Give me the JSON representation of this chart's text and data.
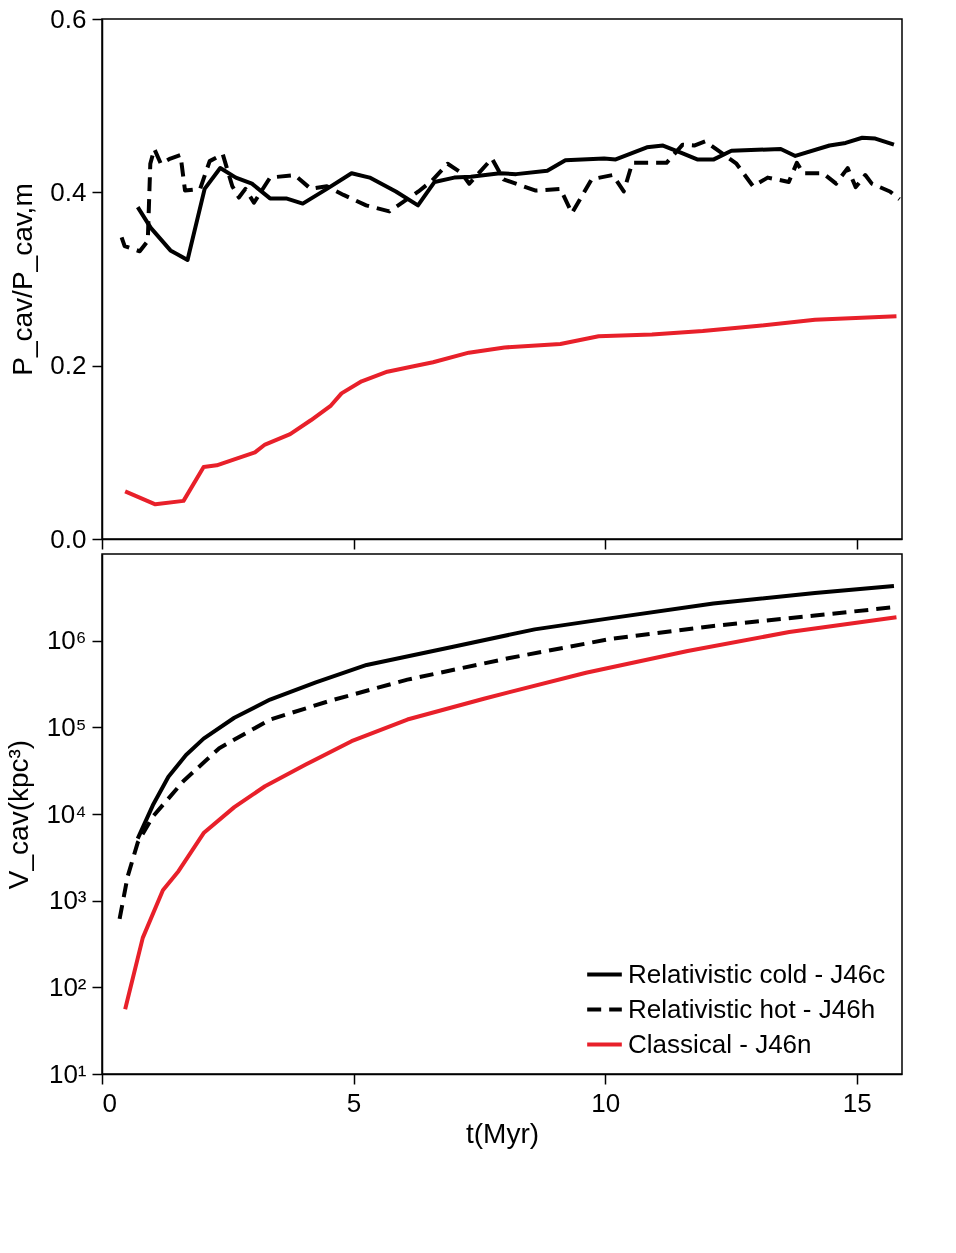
{
  "chart_data": [
    {
      "type": "line",
      "ylabel": "P_cav/P_cav,m",
      "xlim": [
        0,
        15.9
      ],
      "xticks": [
        0,
        5,
        10,
        15
      ],
      "ylim": [
        0,
        0.6
      ],
      "yticks": [
        {
          "value": 0,
          "label": "0.0"
        },
        0.2,
        0.4,
        0.6
      ],
      "tick_labels": "y",
      "grid": false,
      "legend": false,
      "series": [
        {
          "color": "#000000",
          "line_style": "solid",
          "x": [
            0.71,
            0.97,
            1.36,
            1.7,
            2.04,
            2.35,
            2.66,
            2.98,
            3.34,
            3.66,
            3.99,
            4.47,
            4.96,
            5.32,
            5.84,
            6.28,
            6.61,
            7.0,
            7.33,
            7.91,
            8.23,
            8.85,
            9.21,
            9.98,
            10.21,
            10.83,
            11.15,
            11.54,
            11.83,
            12.16,
            12.51,
            13.49,
            13.78,
            14.46,
            14.78,
            15.11,
            15.37,
            15.74
          ],
          "values": [
            0.383,
            0.359,
            0.333,
            0.322,
            0.404,
            0.428,
            0.417,
            0.41,
            0.393,
            0.393,
            0.387,
            0.404,
            0.422,
            0.417,
            0.401,
            0.385,
            0.412,
            0.417,
            0.418,
            0.422,
            0.421,
            0.425,
            0.437,
            0.439,
            0.438,
            0.452,
            0.454,
            0.445,
            0.438,
            0.438,
            0.448,
            0.45,
            0.442,
            0.454,
            0.457,
            0.463,
            0.462,
            0.455
          ]
        },
        {
          "color": "#000000",
          "line_style": "dashed",
          "x": [
            0.39,
            0.45,
            0.75,
            0.91,
            0.96,
            1.04,
            1.17,
            1.36,
            1.56,
            1.65,
            1.95,
            2.14,
            2.4,
            2.59,
            2.72,
            2.85,
            3.02,
            3.34,
            3.83,
            4.15,
            4.47,
            4.8,
            5.25,
            5.71,
            6.29,
            6.55,
            6.87,
            7.13,
            7.3,
            7.75,
            7.98,
            8.62,
            9.11,
            9.34,
            9.73,
            10.15,
            10.37,
            10.54,
            11.22,
            11.54,
            11.77,
            11.99,
            12.61,
            12.94,
            13.23,
            13.65,
            13.81,
            13.94,
            14.33,
            14.59,
            14.82,
            14.98,
            15.17,
            15.3,
            15.66,
            15.85
          ],
          "values": [
            0.348,
            0.338,
            0.332,
            0.344,
            0.433,
            0.45,
            0.433,
            0.439,
            0.443,
            0.402,
            0.404,
            0.436,
            0.444,
            0.407,
            0.394,
            0.404,
            0.388,
            0.417,
            0.42,
            0.404,
            0.407,
            0.397,
            0.385,
            0.378,
            0.401,
            0.413,
            0.433,
            0.423,
            0.41,
            0.439,
            0.415,
            0.402,
            0.404,
            0.376,
            0.415,
            0.42,
            0.401,
            0.434,
            0.434,
            0.455,
            0.454,
            0.459,
            0.433,
            0.407,
            0.417,
            0.412,
            0.434,
            0.422,
            0.422,
            0.41,
            0.428,
            0.406,
            0.42,
            0.41,
            0.401,
            0.392
          ]
        },
        {
          "color": "#e8202a",
          "line_style": "solid",
          "x": [
            0.46,
            1.06,
            1.62,
            2.02,
            2.28,
            2.63,
            3.04,
            3.24,
            3.74,
            4.15,
            4.55,
            4.76,
            5.16,
            5.67,
            6.17,
            6.58,
            7.29,
            8.0,
            9.11,
            9.87,
            10.93,
            11.94,
            13.06,
            14.17,
            15.79
          ],
          "values": [
            0.055,
            0.04,
            0.044,
            0.083,
            0.085,
            0.092,
            0.1,
            0.109,
            0.121,
            0.137,
            0.154,
            0.168,
            0.182,
            0.193,
            0.199,
            0.204,
            0.215,
            0.221,
            0.225,
            0.234,
            0.236,
            0.24,
            0.246,
            0.253,
            0.257
          ]
        }
      ]
    },
    {
      "type": "line",
      "xlabel": "t(Myr)",
      "ylabel": "V_cav(kpc³)",
      "xlim": [
        0,
        15.9
      ],
      "xticks": [
        0,
        5,
        10,
        15
      ],
      "ylim": [
        10,
        10000000
      ],
      "yticks": [
        {
          "value": 10,
          "label": "10¹"
        },
        {
          "value": 100,
          "label": "10²"
        },
        {
          "value": 1000,
          "label": "10³"
        },
        {
          "value": 10000,
          "label": "10⁴"
        },
        {
          "value": 100000,
          "label": "10⁵"
        },
        {
          "value": 1000000,
          "label": "10⁶"
        }
      ],
      "log": "y",
      "grid": false,
      "legend": "bottom right",
      "series": [
        {
          "name": "Relativistic cold - J46c",
          "color": "#000000",
          "line_style": "solid",
          "x": [
            0.71,
            1.01,
            1.32,
            1.67,
            2.02,
            2.63,
            3.34,
            4.25,
            5.26,
            6.98,
            8.6,
            10.12,
            12.15,
            14.17,
            15.74
          ],
          "values": [
            5200,
            12600,
            26900,
            47900,
            74100,
            129000,
            209000,
            331000,
            525000,
            851000,
            1350000,
            1820000,
            2690000,
            3550000,
            4270000
          ]
        },
        {
          "name": "Relativistic hot - J46h",
          "color": "#000000",
          "line_style": "dashed",
          "x": [
            0.35,
            0.51,
            0.71,
            1.01,
            1.62,
            2.33,
            3.34,
            4.55,
            6.07,
            8.1,
            10.12,
            12.15,
            14.17,
            15.79
          ],
          "values": [
            617,
            1900,
            4680,
            9330,
            24000,
            57500,
            123000,
            204000,
            355000,
            631000,
            1050000,
            1480000,
            1950000,
            2450000
          ]
        },
        {
          "name": "Classical - J46n",
          "color": "#e8202a",
          "line_style": "solid",
          "x": [
            0.46,
            0.81,
            1.21,
            1.52,
            2.02,
            2.63,
            3.24,
            4.05,
            4.96,
            6.07,
            7.59,
            9.62,
            11.64,
            13.66,
            15.79
          ],
          "values": [
            56,
            372,
            1320,
            2190,
            6030,
            12000,
            20900,
            37200,
            69200,
            123000,
            214000,
            427000,
            759000,
            1260000,
            1860000
          ]
        }
      ]
    }
  ]
}
